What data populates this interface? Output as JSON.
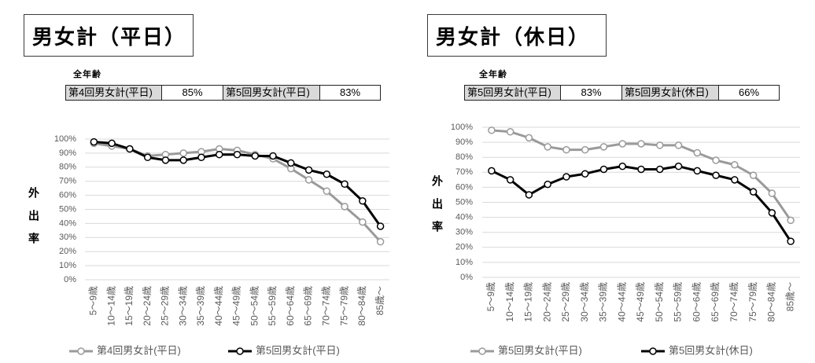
{
  "chart_data": [
    {
      "type": "line",
      "title": "男女計（平日）",
      "table_caption": "全年齢",
      "table": [
        {
          "label": "第4回男女計(平日)",
          "value": "85%"
        },
        {
          "label": "第5回男女計(平日)",
          "value": "83%"
        }
      ],
      "ylabel": "外出率",
      "ylim": [
        0,
        100
      ],
      "yticks": [
        0,
        10,
        20,
        30,
        40,
        50,
        60,
        70,
        80,
        90,
        100
      ],
      "ytick_labels": [
        "0%",
        "10%",
        "20%",
        "30%",
        "40%",
        "50%",
        "60%",
        "70%",
        "80%",
        "90%",
        "100%"
      ],
      "categories": [
        "5～9歳",
        "10～14歳",
        "15～19歳",
        "20～24歳",
        "25～29歳",
        "30～34歳",
        "35～39歳",
        "40～44歳",
        "45～49歳",
        "50～54歳",
        "55～59歳",
        "60～64歳",
        "65～69歳",
        "70～74歳",
        "75～79歳",
        "80～84歳",
        "85歳～"
      ],
      "series": [
        {
          "name": "第4回男女計(平日)",
          "color": "#9a9a9a",
          "marker": "open-circle",
          "values": [
            97,
            95,
            93,
            88,
            89,
            90,
            91,
            93,
            92,
            89,
            86,
            79,
            71,
            63,
            52,
            41,
            27
          ]
        },
        {
          "name": "第5回男女計(平日)",
          "color": "#000000",
          "marker": "open-circle",
          "values": [
            98,
            97,
            93,
            87,
            85,
            85,
            87,
            89,
            89,
            88,
            88,
            83,
            78,
            75,
            68,
            56,
            38
          ]
        }
      ],
      "grid": true,
      "legend": "bottom"
    },
    {
      "type": "line",
      "title": "男女計（休日）",
      "table_caption": "全年齢",
      "table": [
        {
          "label": "第5回男女計(平日)",
          "value": "83%"
        },
        {
          "label": "第5回男女計(休日)",
          "value": "66%"
        }
      ],
      "ylabel": "外出率",
      "ylim": [
        0,
        100
      ],
      "yticks": [
        0,
        10,
        20,
        30,
        40,
        50,
        60,
        70,
        80,
        90,
        100
      ],
      "ytick_labels": [
        "0%",
        "10%",
        "20%",
        "30%",
        "40%",
        "50%",
        "60%",
        "70%",
        "80%",
        "90%",
        "100%"
      ],
      "categories": [
        "5～9歳",
        "10～14歳",
        "15～19歳",
        "20～24歳",
        "25～29歳",
        "30～34歳",
        "35～39歳",
        "40～44歳",
        "45～49歳",
        "50～54歳",
        "55～59歳",
        "60～64歳",
        "65～69歳",
        "70～74歳",
        "75～79歳",
        "80～84歳",
        "85歳～"
      ],
      "series": [
        {
          "name": "第5回男女計(平日)",
          "color": "#9a9a9a",
          "marker": "open-circle",
          "values": [
            98,
            97,
            93,
            87,
            85,
            85,
            87,
            89,
            89,
            88,
            88,
            83,
            78,
            75,
            68,
            56,
            38
          ]
        },
        {
          "name": "第5回男女計(休日)",
          "color": "#000000",
          "marker": "open-circle",
          "values": [
            71,
            65,
            55,
            62,
            67,
            69,
            72,
            74,
            72,
            72,
            74,
            71,
            68,
            65,
            57,
            43,
            24
          ]
        }
      ],
      "grid": true,
      "legend": "bottom"
    }
  ]
}
